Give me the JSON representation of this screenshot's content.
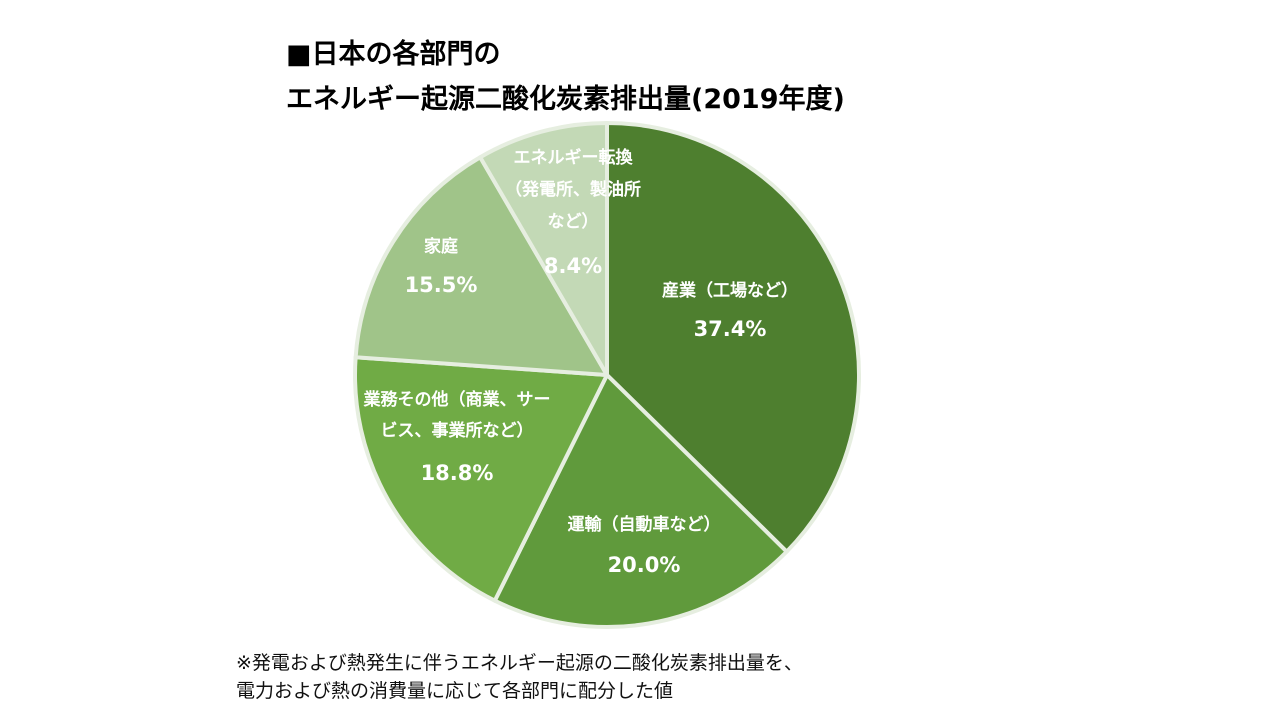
{
  "title": {
    "line1": "■日本の各部門の",
    "line2": "エネルギー起源二酸化炭素排出量(2019年度)"
  },
  "footnote": {
    "line1": "※発電および熱発生に伴うエネルギー起源の二酸化炭素排出量を、",
    "line2": "電力および熱の消費量に応じて各部門に配分した値"
  },
  "chart_data": {
    "type": "pie",
    "title": "日本の各部門のエネルギー起源二酸化炭素排出量(2019年度)",
    "unit": "%",
    "start": "12 o'clock, clockwise",
    "slices": [
      {
        "id": "industry",
        "label_lines": [
          "産業（工場など）"
        ],
        "value": 37.4,
        "value_label": "37.4%",
        "color": "#4e7f2f"
      },
      {
        "id": "transport",
        "label_lines": [
          "運輸（自動車など）"
        ],
        "value": 20.0,
        "value_label": "20.0%",
        "color": "#609a3c"
      },
      {
        "id": "commercial",
        "label_lines": [
          "業務その他（商業、サー",
          "ビス、事業所など）"
        ],
        "value": 18.8,
        "value_label": "18.8%",
        "color": "#70ab45"
      },
      {
        "id": "household",
        "label_lines": [
          "家庭"
        ],
        "value": 15.5,
        "value_label": "15.5%",
        "color": "#a0c489"
      },
      {
        "id": "energy-conversion",
        "label_lines": [
          "エネルギー転換",
          "（発電所、製油所",
          "など）"
        ],
        "value": 8.4,
        "value_label": "8.4%",
        "color": "#c3d9b6"
      }
    ]
  }
}
